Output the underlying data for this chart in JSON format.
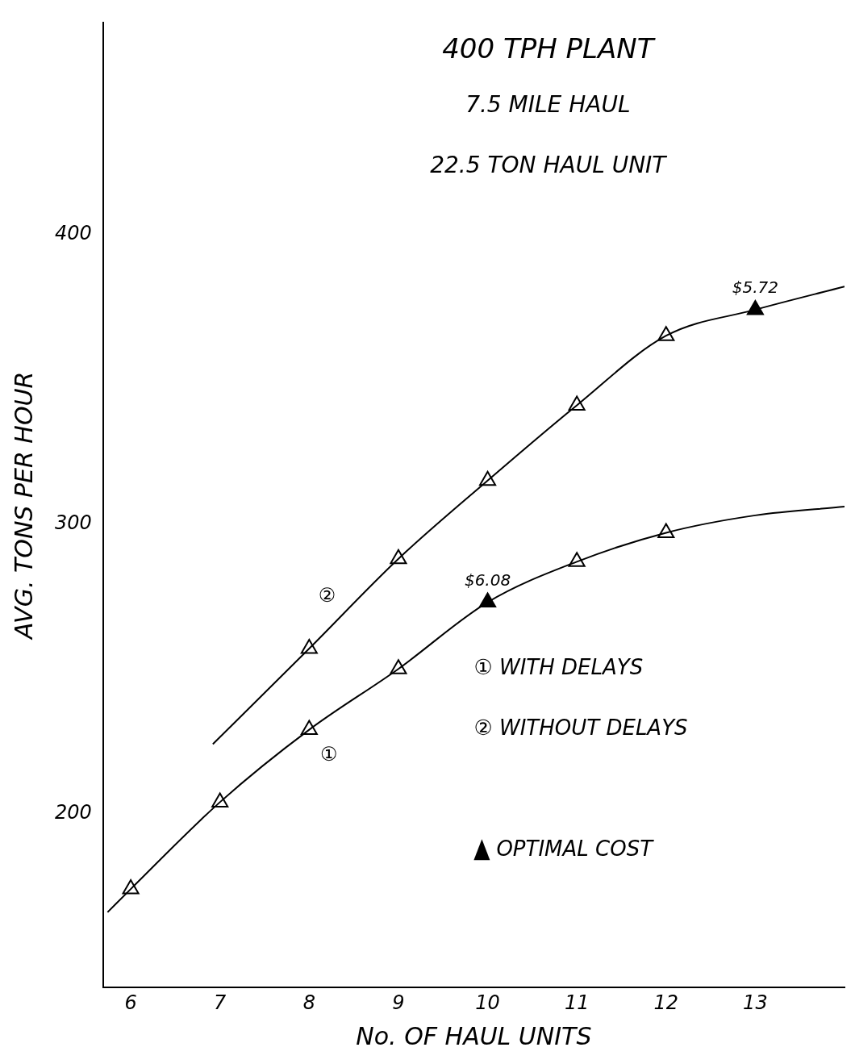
{
  "chart_data": {
    "type": "line",
    "title": "400 TPH PLANT",
    "subtitle": "7.5 MILE HAUL",
    "xlabel": "No. OF HAUL UNITS",
    "ylabel": "AVG. TONS PER HOUR",
    "xlim": [
      5.69,
      14.0
    ],
    "xticks": [
      6,
      7,
      8,
      9,
      10,
      11,
      12,
      13
    ],
    "ylim": [
      140,
      473
    ],
    "yticks": [
      200,
      300,
      400
    ],
    "grid": false,
    "legend": "right",
    "annotations": [
      "22.5 TON HAUL UNIT",
      "① WITH DELAYS",
      "② WITHOUT DELAYS",
      "②",
      "①",
      {
        "text": "$6.08",
        "x": 10,
        "y": 273
      },
      {
        "text": "$5.72",
        "x": 13,
        "y": 374
      }
    ],
    "series": [
      {
        "color": "#000000",
        "marker": "none",
        "x": [
          5.74,
          6,
          7,
          8,
          9,
          10,
          11,
          12,
          13,
          14.0
        ],
        "values": [
          166,
          174,
          204,
          229,
          250,
          273,
          287,
          297,
          303,
          306
        ]
      },
      {
        "color": "#000000",
        "marker": "none",
        "x": [
          6.92,
          8,
          9,
          10,
          11,
          12,
          13,
          14.0
        ],
        "values": [
          224,
          257,
          288,
          315,
          341,
          365,
          374,
          382
        ]
      },
      {
        "type": "scatter",
        "color": "#000000",
        "marker": "triangle",
        "x": [
          6,
          7,
          8,
          9,
          10,
          11,
          12
        ],
        "values": [
          174,
          204,
          229,
          250,
          null,
          287,
          297
        ]
      },
      {
        "type": "scatter",
        "color": "#000000",
        "marker": "triangle",
        "x": [
          8,
          9,
          10,
          11,
          12
        ],
        "values": [
          257,
          288,
          315,
          341,
          365
        ]
      },
      {
        "type": "scatter",
        "name": "OPTIMAL COST",
        "color": "#000000",
        "marker": "triangle",
        "x": [
          10,
          13
        ],
        "values": [
          273,
          374
        ]
      }
    ]
  }
}
